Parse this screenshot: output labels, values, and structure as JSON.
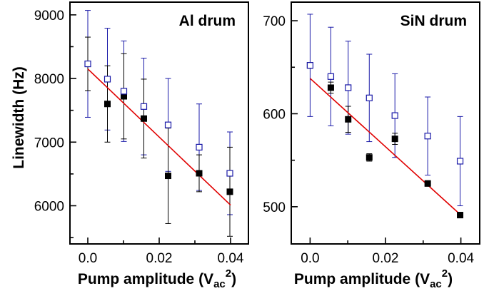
{
  "figure": {
    "ylabel": "Linewidth (Hz)",
    "xlabel_main": "Pump amplitude (V",
    "xlabel_sub": "ac",
    "xlabel_sup": "2",
    "xlabel_end": ")"
  },
  "chart_data": [
    {
      "type": "scatter",
      "title": "Al drum",
      "xlabel": "Pump amplitude (Vac^2)",
      "ylabel": "Linewidth (Hz)",
      "xlim": [
        -0.005,
        0.045
      ],
      "ylim": [
        5400,
        9200
      ],
      "xticks": [
        0.0,
        0.02,
        0.04
      ],
      "xtick_labels": [
        "0.0",
        "0.02",
        "0.04"
      ],
      "yticks": [
        6000,
        7000,
        8000,
        9000
      ],
      "ytick_labels": [
        "6000",
        "7000",
        "8000",
        "9000"
      ],
      "colors": {
        "open": "#1a1aa8",
        "filled": "#000000",
        "fit": "#e00000"
      },
      "series": [
        {
          "marker": "open-square",
          "color": "#1a1aa8",
          "x": [
            0.0,
            0.0055,
            0.0101,
            0.0157,
            0.0225,
            0.0312,
            0.0398
          ],
          "y": [
            8230,
            7990,
            7800,
            7560,
            7270,
            6920,
            6510
          ],
          "err": [
            840,
            800,
            790,
            760,
            730,
            680,
            650
          ]
        },
        {
          "marker": "filled-square",
          "color": "#000000",
          "x": [
            0.0,
            0.0055,
            0.0101,
            0.0157,
            0.0225,
            0.0312,
            0.0398
          ],
          "y": [
            8230,
            7600,
            7720,
            7370,
            6470,
            6510,
            6220
          ],
          "err": [
            420,
            600,
            670,
            620,
            750,
            290,
            700
          ]
        }
      ],
      "fit": {
        "x": [
          0.0,
          0.04
        ],
        "y": [
          8150,
          6010
        ]
      }
    },
    {
      "type": "scatter",
      "title": "SiN drum",
      "xlabel": "Pump amplitude (Vac^2)",
      "ylabel": "",
      "xlim": [
        -0.005,
        0.045
      ],
      "ylim": [
        460,
        720
      ],
      "xticks": [
        0.0,
        0.02,
        0.04
      ],
      "xtick_labels": [
        "0.0",
        "0.02",
        "0.04"
      ],
      "yticks": [
        500,
        600,
        700
      ],
      "ytick_labels": [
        "500",
        "600",
        "700"
      ],
      "colors": {
        "open": "#1a1aa8",
        "filled": "#000000",
        "fit": "#e00000"
      },
      "series": [
        {
          "marker": "open-square",
          "color": "#1a1aa8",
          "x": [
            0.0,
            0.0055,
            0.0101,
            0.0157,
            0.0225,
            0.0312,
            0.0398
          ],
          "y": [
            652,
            640,
            628,
            617,
            598,
            576,
            549
          ],
          "err": [
            55,
            53,
            50,
            47,
            45,
            42,
            48
          ]
        },
        {
          "marker": "filled-square",
          "color": "#000000",
          "x": [
            0.0,
            0.0055,
            0.0101,
            0.0157,
            0.0225,
            0.0312,
            0.0398
          ],
          "y": [
            652,
            628,
            594,
            553,
            573,
            525,
            491
          ],
          "err": [
            3,
            6,
            14,
            4,
            6,
            3,
            3
          ]
        }
      ],
      "fit": {
        "x": [
          0.0,
          0.04
        ],
        "y": [
          638,
          491
        ]
      }
    }
  ]
}
